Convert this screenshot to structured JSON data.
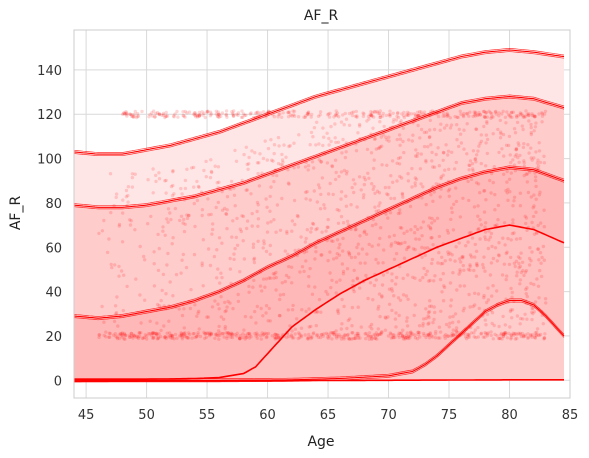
{
  "chart_data": {
    "type": "line",
    "title": "AF_R",
    "xlabel": "Age",
    "ylabel": "AF_R",
    "xlim": [
      44,
      85
    ],
    "ylim": [
      -8,
      158
    ],
    "grid": true,
    "xticks": [
      45,
      50,
      55,
      60,
      65,
      70,
      75,
      80,
      85
    ],
    "yticks": [
      0,
      20,
      40,
      60,
      80,
      100,
      120,
      140
    ],
    "colors": {
      "main": "#ff0000",
      "grid": "#d9d9d9",
      "frame": "#cccccc"
    },
    "series": [
      {
        "x": [
          44,
          46,
          48,
          50,
          52,
          54,
          56,
          58,
          60,
          62,
          64,
          66,
          68,
          70,
          72,
          74,
          76,
          78,
          80,
          82,
          84.5
        ],
        "values": [
          103,
          102,
          102,
          104,
          106,
          109,
          112,
          116,
          120,
          124,
          128,
          131,
          134,
          137,
          140,
          143,
          146,
          148,
          149,
          148,
          146
        ]
      },
      {
        "x": [
          44,
          46,
          48,
          50,
          52,
          54,
          56,
          58,
          60,
          62,
          64,
          66,
          68,
          70,
          72,
          74,
          76,
          78,
          80,
          82,
          84.5
        ],
        "values": [
          79,
          78,
          78,
          79,
          81,
          83,
          86,
          89,
          93,
          97,
          101,
          105,
          109,
          113,
          117,
          121,
          125,
          127,
          128,
          127,
          123
        ]
      },
      {
        "x": [
          44,
          46,
          48,
          50,
          52,
          54,
          56,
          58,
          60,
          62,
          64,
          66,
          68,
          70,
          72,
          74,
          76,
          78,
          80,
          82,
          84.5
        ],
        "values": [
          29,
          28,
          29,
          31,
          33,
          36,
          40,
          45,
          51,
          56,
          62,
          67,
          72,
          77,
          82,
          87,
          91,
          94,
          96,
          95,
          90
        ]
      },
      {
        "x": [
          44,
          46,
          48,
          50,
          52,
          54,
          56,
          58,
          59,
          60,
          61,
          62,
          64,
          66,
          68,
          70,
          72,
          74,
          76,
          78,
          80,
          82,
          84.5
        ],
        "values": [
          0.5,
          0.5,
          0.5,
          0.5,
          0.6,
          0.8,
          1.2,
          3,
          6,
          12,
          18,
          24,
          32,
          39,
          45,
          50,
          55,
          60,
          64,
          68,
          70,
          68,
          62
        ]
      },
      {
        "x": [
          44,
          50,
          56,
          62,
          66,
          70,
          72,
          73,
          74,
          75,
          76,
          77,
          78,
          79,
          80,
          81,
          82,
          83,
          84.5
        ],
        "values": [
          0,
          0,
          0,
          0.2,
          0.8,
          2,
          4,
          7,
          11,
          16,
          21,
          26,
          31,
          34,
          36,
          36,
          34,
          29,
          20
        ]
      },
      {
        "x": [
          44,
          60,
          70,
          80,
          84.5
        ],
        "values": [
          -0.5,
          -0.2,
          0,
          0.2,
          0.2
        ]
      }
    ],
    "scatter_clusters": {
      "low_value": 20,
      "high_value": 120
    }
  }
}
